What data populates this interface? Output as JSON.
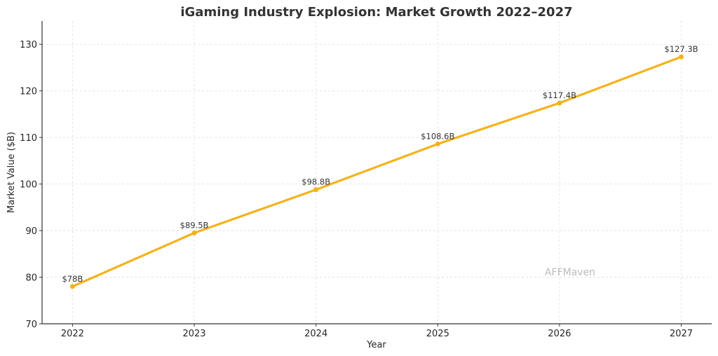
{
  "chart_data": {
    "type": "line",
    "title": "iGaming Industry Explosion: Market Growth 2022–2027",
    "xlabel": "Year",
    "ylabel": "Market Value ($B)",
    "x": [
      2022,
      2023,
      2024,
      2025,
      2026,
      2027
    ],
    "x_tick_labels": [
      "2022",
      "2023",
      "2024",
      "2025",
      "2026",
      "2027"
    ],
    "values": [
      78,
      89.5,
      98.8,
      108.6,
      117.4,
      127.3
    ],
    "data_labels": [
      "$78B",
      "$89.5B",
      "$98.8B",
      "$108.6B",
      "$117.4B",
      "$127.3B"
    ],
    "y_ticks": [
      70,
      80,
      90,
      100,
      110,
      120,
      130
    ],
    "y_tick_labels": [
      "70",
      "80",
      "90",
      "100",
      "110",
      "120",
      "130"
    ],
    "xlim": [
      2021.75,
      2027.25
    ],
    "ylim": [
      70,
      135
    ],
    "grid": true,
    "line_color": "#F5B21A",
    "watermark": "AFFMaven"
  }
}
